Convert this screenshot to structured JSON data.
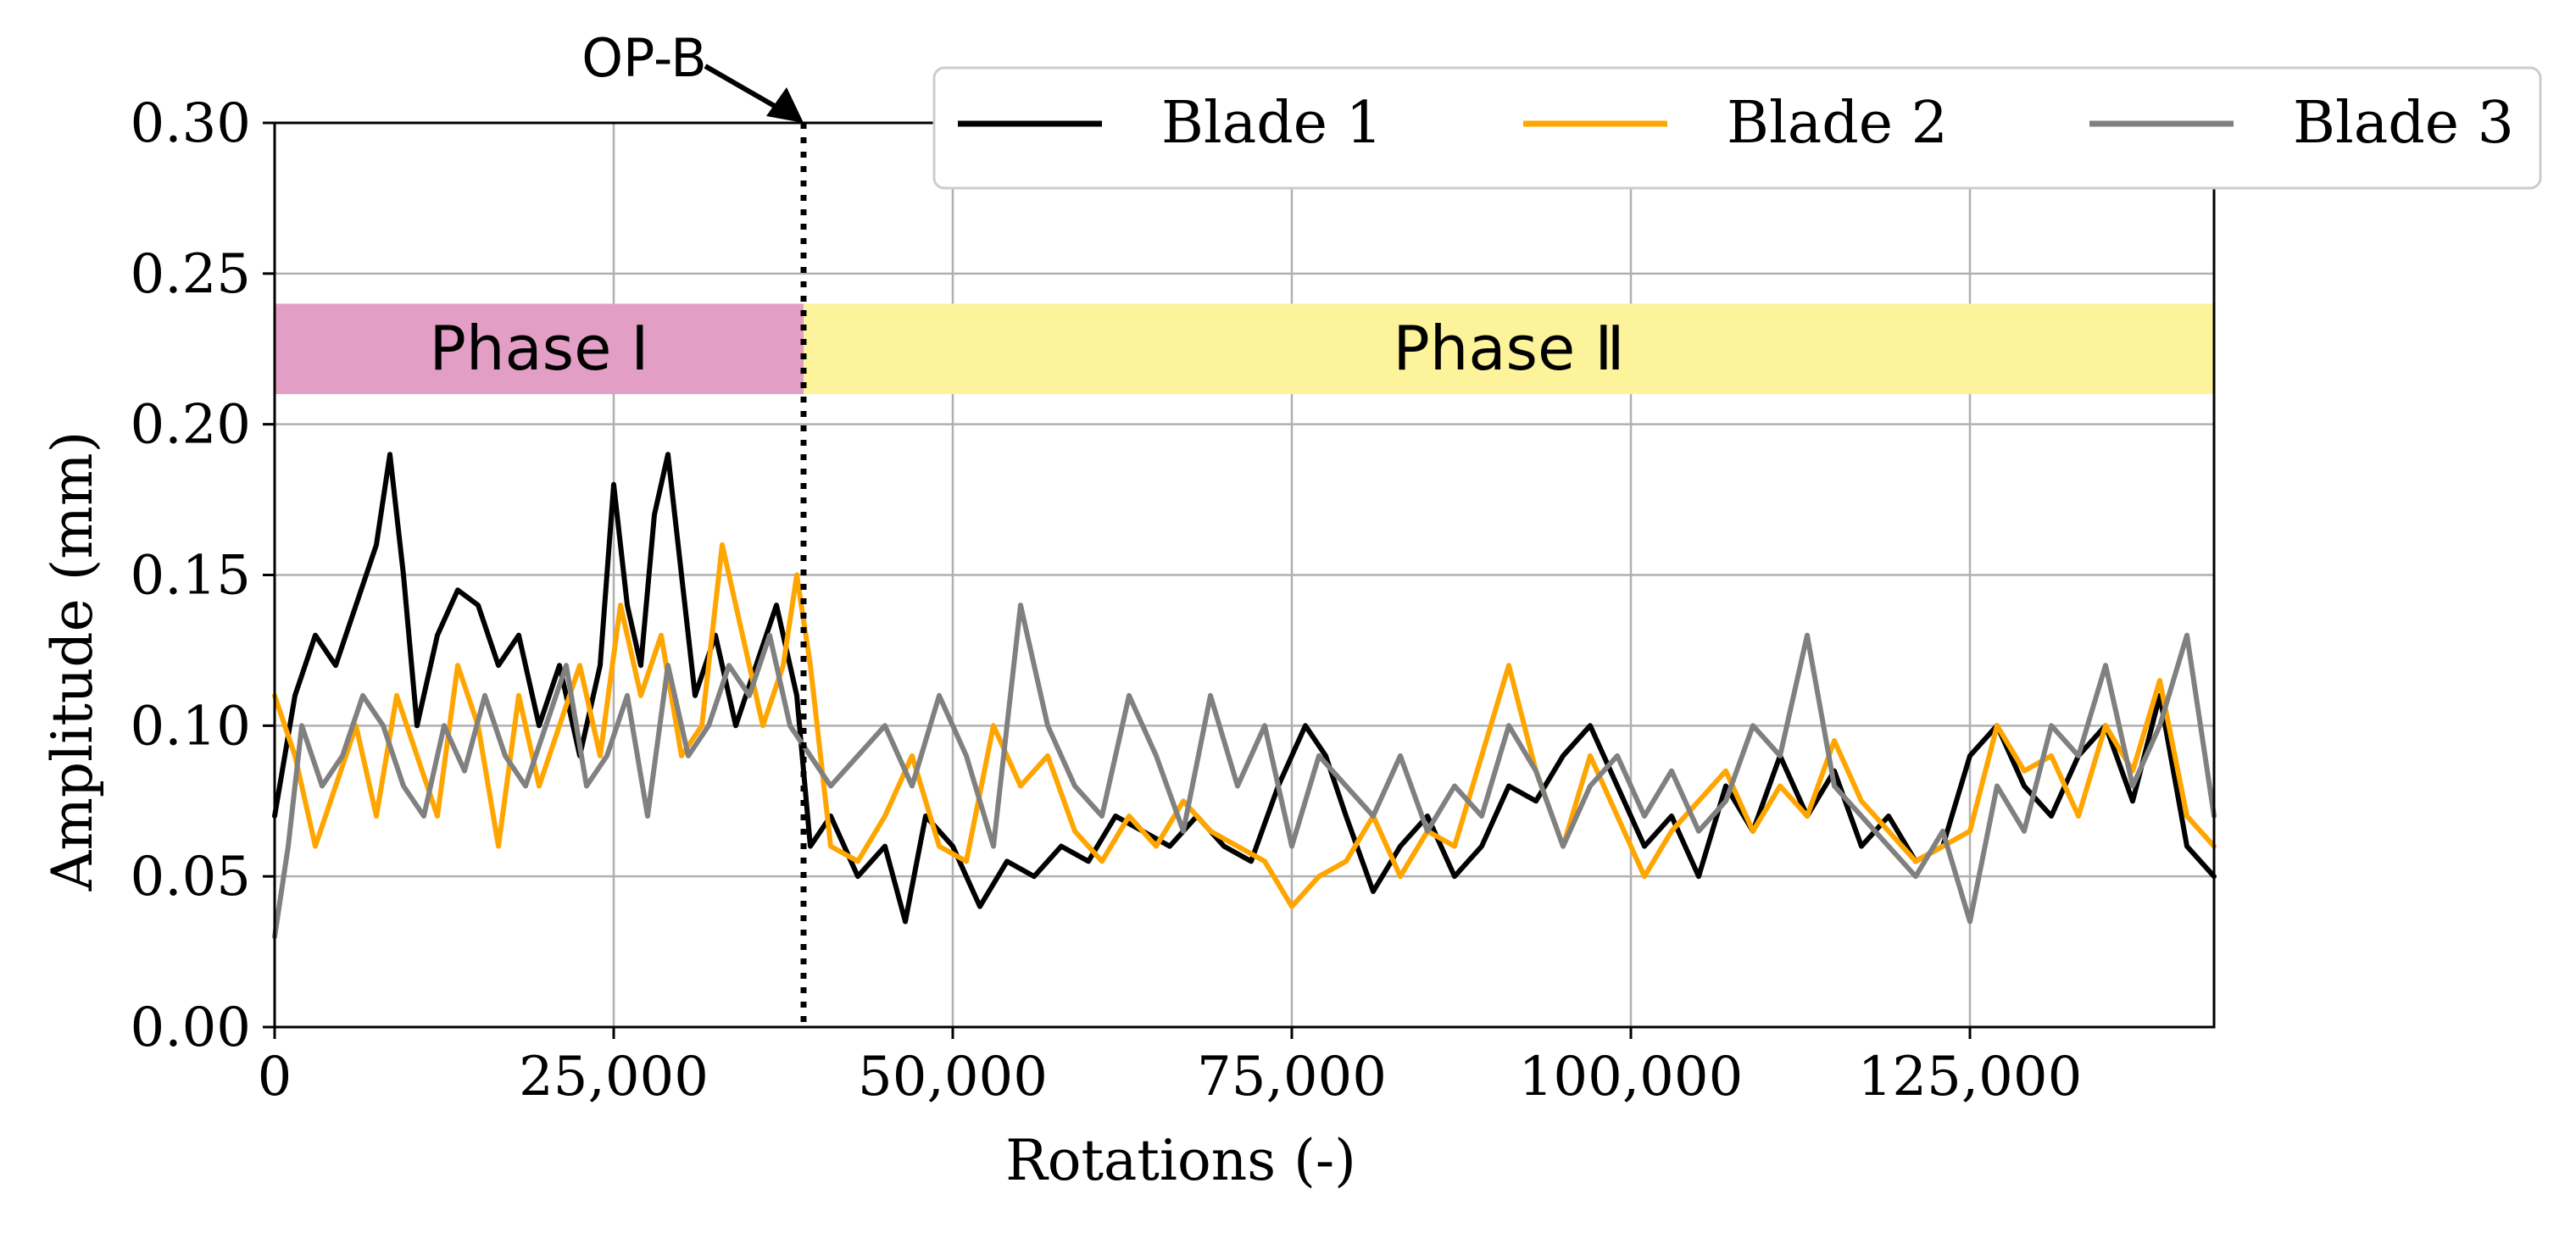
{
  "chart_data": {
    "type": "line",
    "xlabel": "Rotations (-)",
    "ylabel": "Amplitude (mm)",
    "xlim": [
      0,
      143000
    ],
    "ylim": [
      0,
      0.3
    ],
    "xticks": [
      0,
      25000,
      50000,
      75000,
      100000,
      125000
    ],
    "xtick_labels": [
      "0",
      "25,000",
      "50,000",
      "75,000",
      "100,000",
      "125,000"
    ],
    "yticks": [
      0,
      0.05,
      0.1,
      0.15,
      0.2,
      0.25,
      0.3
    ],
    "ytick_labels": [
      "0.00",
      "0.05",
      "0.10",
      "0.15",
      "0.20",
      "0.25",
      "0.30"
    ],
    "grid": true,
    "legend_position": "top-right",
    "annotation": {
      "label": "OP-B",
      "x": 39000
    },
    "phases": [
      {
        "label": "Phase Ⅰ",
        "x_start": 0,
        "x_end": 39000,
        "y_start": 0.21,
        "y_end": 0.24,
        "color": "#e39ec5"
      },
      {
        "label": "Phase Ⅱ",
        "x_start": 39000,
        "x_end": 143000,
        "y_start": 0.21,
        "y_end": 0.24,
        "color": "#fdf39b"
      }
    ],
    "series": [
      {
        "name": "Blade 1",
        "color": "#000000",
        "x": [
          0,
          1500,
          3000,
          4500,
          6000,
          7500,
          8500,
          9500,
          10500,
          12000,
          13500,
          15000,
          16500,
          18000,
          19500,
          21000,
          22500,
          24000,
          25000,
          26000,
          27000,
          28000,
          29000,
          30000,
          31000,
          32500,
          34000,
          35500,
          37000,
          38500,
          39500,
          41000,
          43000,
          45000,
          46500,
          48000,
          50000,
          52000,
          54000,
          56000,
          58000,
          60000,
          62000,
          64000,
          66000,
          68000,
          70000,
          72000,
          74000,
          76000,
          77500,
          79000,
          81000,
          83000,
          85000,
          87000,
          89000,
          91000,
          93000,
          95000,
          97000,
          99000,
          101000,
          103000,
          105000,
          107000,
          109000,
          111000,
          113000,
          115000,
          117000,
          119000,
          121000,
          123000,
          125000,
          127000,
          129000,
          131000,
          133000,
          135000,
          137000,
          139000,
          141000,
          143000
        ],
        "values": [
          0.07,
          0.11,
          0.13,
          0.12,
          0.14,
          0.16,
          0.19,
          0.15,
          0.1,
          0.13,
          0.145,
          0.14,
          0.12,
          0.13,
          0.1,
          0.12,
          0.09,
          0.12,
          0.18,
          0.14,
          0.12,
          0.17,
          0.19,
          0.15,
          0.11,
          0.13,
          0.1,
          0.12,
          0.14,
          0.11,
          0.06,
          0.07,
          0.05,
          0.06,
          0.035,
          0.07,
          0.06,
          0.04,
          0.055,
          0.05,
          0.06,
          0.055,
          0.07,
          0.065,
          0.06,
          0.07,
          0.06,
          0.055,
          0.08,
          0.1,
          0.09,
          0.07,
          0.045,
          0.06,
          0.07,
          0.05,
          0.06,
          0.08,
          0.075,
          0.09,
          0.1,
          0.08,
          0.06,
          0.07,
          0.05,
          0.08,
          0.065,
          0.09,
          0.07,
          0.085,
          0.06,
          0.07,
          0.055,
          0.06,
          0.09,
          0.1,
          0.08,
          0.07,
          0.09,
          0.1,
          0.075,
          0.11,
          0.06,
          0.05
        ]
      },
      {
        "name": "Blade 2",
        "color": "#ffa500",
        "x": [
          0,
          1500,
          3000,
          4500,
          6000,
          7500,
          9000,
          10500,
          12000,
          13500,
          15000,
          16500,
          18000,
          19500,
          21000,
          22500,
          24000,
          25500,
          27000,
          28500,
          30000,
          31500,
          33000,
          34500,
          36000,
          37500,
          38500,
          39500,
          41000,
          43000,
          45000,
          47000,
          49000,
          51000,
          53000,
          55000,
          57000,
          59000,
          61000,
          63000,
          65000,
          67000,
          69000,
          71000,
          73000,
          75000,
          77000,
          79000,
          81000,
          83000,
          85000,
          87000,
          89000,
          91000,
          93000,
          95000,
          97000,
          99000,
          101000,
          103000,
          105000,
          107000,
          109000,
          111000,
          113000,
          115000,
          117000,
          119000,
          121000,
          123000,
          125000,
          127000,
          129000,
          131000,
          133000,
          135000,
          137000,
          139000,
          141000,
          143000
        ],
        "values": [
          0.11,
          0.09,
          0.06,
          0.08,
          0.1,
          0.07,
          0.11,
          0.09,
          0.07,
          0.12,
          0.1,
          0.06,
          0.11,
          0.08,
          0.1,
          0.12,
          0.09,
          0.14,
          0.11,
          0.13,
          0.09,
          0.1,
          0.16,
          0.13,
          0.1,
          0.12,
          0.15,
          0.12,
          0.06,
          0.055,
          0.07,
          0.09,
          0.06,
          0.055,
          0.1,
          0.08,
          0.09,
          0.065,
          0.055,
          0.07,
          0.06,
          0.075,
          0.065,
          0.06,
          0.055,
          0.04,
          0.05,
          0.055,
          0.07,
          0.05,
          0.065,
          0.06,
          0.09,
          0.12,
          0.085,
          0.06,
          0.09,
          0.07,
          0.05,
          0.065,
          0.075,
          0.085,
          0.065,
          0.08,
          0.07,
          0.095,
          0.075,
          0.065,
          0.055,
          0.06,
          0.065,
          0.1,
          0.085,
          0.09,
          0.07,
          0.1,
          0.085,
          0.115,
          0.07,
          0.06
        ]
      },
      {
        "name": "Blade 3",
        "color": "#808080",
        "x": [
          0,
          1000,
          2000,
          3500,
          5000,
          6500,
          8000,
          9500,
          11000,
          12500,
          14000,
          15500,
          17000,
          18500,
          20000,
          21500,
          23000,
          24500,
          26000,
          27500,
          29000,
          30500,
          32000,
          33500,
          35000,
          36500,
          38000,
          39500,
          41000,
          43000,
          45000,
          47000,
          49000,
          51000,
          53000,
          55000,
          57000,
          59000,
          61000,
          63000,
          65000,
          67000,
          69000,
          71000,
          73000,
          75000,
          77000,
          79000,
          81000,
          83000,
          85000,
          87000,
          89000,
          91000,
          93000,
          95000,
          97000,
          99000,
          101000,
          103000,
          105000,
          107000,
          109000,
          111000,
          113000,
          115000,
          117000,
          119000,
          121000,
          123000,
          125000,
          127000,
          129000,
          131000,
          133000,
          135000,
          137000,
          139000,
          141000,
          143000
        ],
        "values": [
          0.03,
          0.06,
          0.1,
          0.08,
          0.09,
          0.11,
          0.1,
          0.08,
          0.07,
          0.1,
          0.085,
          0.11,
          0.09,
          0.08,
          0.1,
          0.12,
          0.08,
          0.09,
          0.11,
          0.07,
          0.12,
          0.09,
          0.1,
          0.12,
          0.11,
          0.13,
          0.1,
          0.09,
          0.08,
          0.09,
          0.1,
          0.08,
          0.11,
          0.09,
          0.06,
          0.14,
          0.1,
          0.08,
          0.07,
          0.11,
          0.09,
          0.065,
          0.11,
          0.08,
          0.1,
          0.06,
          0.09,
          0.08,
          0.07,
          0.09,
          0.065,
          0.08,
          0.07,
          0.1,
          0.085,
          0.06,
          0.08,
          0.09,
          0.07,
          0.085,
          0.065,
          0.075,
          0.1,
          0.09,
          0.13,
          0.08,
          0.07,
          0.06,
          0.05,
          0.065,
          0.035,
          0.08,
          0.065,
          0.1,
          0.09,
          0.12,
          0.08,
          0.1,
          0.13,
          0.07
        ]
      }
    ]
  }
}
